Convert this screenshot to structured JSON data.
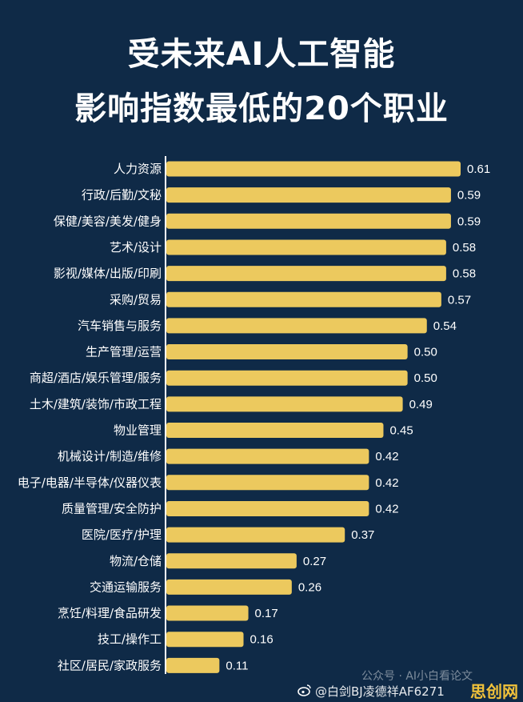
{
  "chart_data": {
    "type": "bar",
    "orientation": "horizontal",
    "title": "受未来AI人工智能影响指数最低的20个职业",
    "title_lines": [
      "受未来AI人工智能",
      "影响指数最低的20个职业"
    ],
    "categories": [
      "人力资源",
      "行政/后勤/文秘",
      "保健/美容/美发/健身",
      "艺术/设计",
      "影视/媒体/出版/印刷",
      "采购/贸易",
      "汽车销售与服务",
      "生产管理/运营",
      "商超/酒店/娱乐管理/服务",
      "土木/建筑/装饰/市政工程",
      "物业管理",
      "机械设计/制造/维修",
      "电子/电器/半导体/仪器仪表",
      "质量管理/安全防护",
      "医院/医疗/护理",
      "物流/仓储",
      "交通运输服务",
      "烹饪/料理/食品研发",
      "技工/操作工",
      "社区/居民/家政服务"
    ],
    "values": [
      0.61,
      0.59,
      0.59,
      0.58,
      0.58,
      0.57,
      0.54,
      0.5,
      0.5,
      0.49,
      0.45,
      0.42,
      0.42,
      0.42,
      0.37,
      0.27,
      0.26,
      0.17,
      0.16,
      0.11
    ],
    "value_labels": [
      "0.61",
      "0.59",
      "0.59",
      "0.58",
      "0.58",
      "0.57",
      "0.54",
      "0.50",
      "0.50",
      "0.49",
      "0.45",
      "0.42",
      "0.42",
      "0.42",
      "0.37",
      "0.27",
      "0.26",
      "0.17",
      "0.16",
      "0.11"
    ],
    "xlim": [
      0,
      0.61
    ],
    "bar_color": "#ecc95e",
    "background_color": "#0f2a47",
    "axis_color": "#ffffff",
    "grid": false
  },
  "watermarks": {
    "public_account": "公众号 · AI小白看论文",
    "weibo": "@白剑BJ凌德祥AF6271",
    "site": "思创网"
  }
}
